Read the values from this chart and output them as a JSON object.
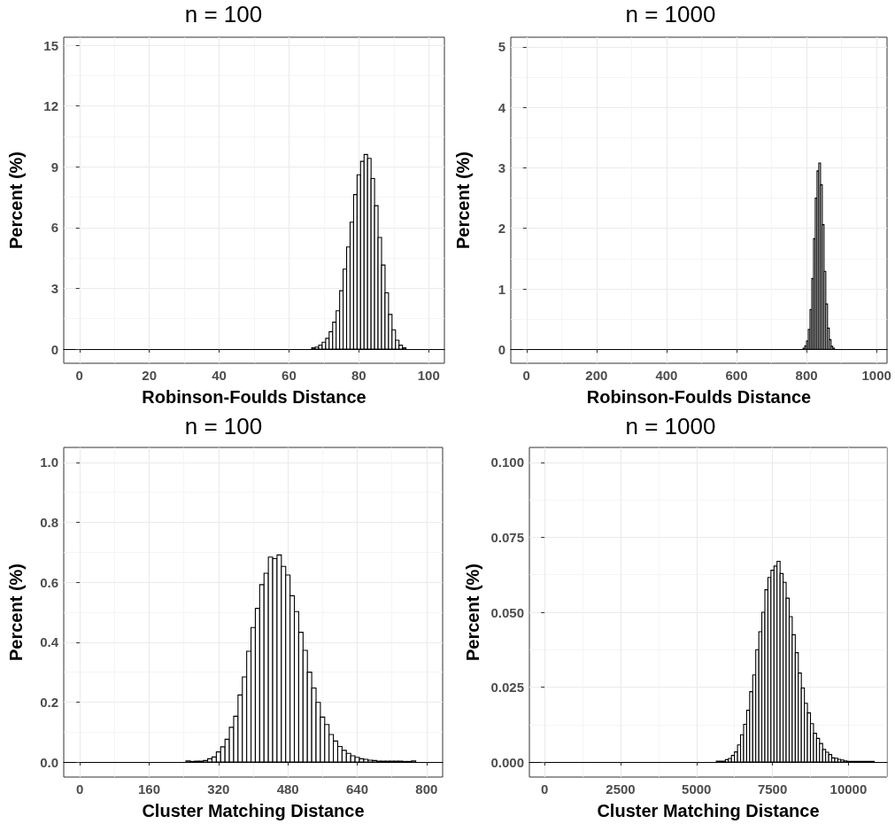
{
  "chart_data": [
    {
      "type": "histogram",
      "title": "n = 100",
      "xlabel": "Robinson-Foulds Distance",
      "ylabel": "Percent (%)",
      "color": "#ffffff",
      "grid": true,
      "bins": [
        66.5,
        67.5,
        68.5,
        69.5,
        70.5,
        71.5,
        72.5,
        73.5,
        74.5,
        75.5,
        76.5,
        77.5,
        78.5,
        79.5,
        80.5,
        81.5,
        82.5,
        83.5,
        84.5,
        85.5,
        86.5,
        87.5,
        88.5,
        89.5,
        90.5,
        91.5,
        92.5,
        93.5
      ],
      "values": [
        0.06,
        0.1,
        0.2,
        0.34,
        0.53,
        0.86,
        1.33,
        1.89,
        2.88,
        3.95,
        5.04,
        6.27,
        7.63,
        8.61,
        9.27,
        9.61,
        9.42,
        8.42,
        7.08,
        5.51,
        4.15,
        2.78,
        1.71,
        0.95,
        0.44,
        0.19,
        0.06
      ],
      "xlim": [
        -4.5,
        104.5
      ],
      "xticks": [
        0,
        20,
        40,
        60,
        80,
        100
      ],
      "ylim": [
        -0.7,
        15.4
      ],
      "yticks": [
        0,
        3,
        6,
        9,
        12,
        15
      ]
    },
    {
      "type": "histogram",
      "title": "n = 1000",
      "xlabel": "Robinson-Foulds Distance",
      "ylabel": "Percent (%)",
      "color": "#ffffff",
      "grid": true,
      "bins": [
        790,
        795,
        800,
        805,
        810,
        815,
        820,
        825,
        830,
        835,
        840,
        845,
        850,
        855,
        860,
        865,
        870,
        875,
        880
      ],
      "values": [
        0.02,
        0.06,
        0.14,
        0.33,
        0.66,
        1.17,
        1.83,
        2.5,
        2.95,
        3.08,
        2.72,
        2.06,
        1.29,
        0.75,
        0.35,
        0.16,
        0.05,
        0.02
      ],
      "xlim": [
        -45,
        1030
      ],
      "xticks": [
        0,
        200,
        400,
        600,
        800,
        1000
      ],
      "ylim": [
        -0.23,
        5.16
      ],
      "yticks": [
        0,
        1,
        2,
        3,
        4,
        5
      ]
    },
    {
      "type": "histogram",
      "title": "n = 100",
      "xlabel": "Cluster Matching Distance",
      "ylabel": "Percent (%)",
      "color": "#ffffff",
      "grid": true,
      "bins": [
        245,
        255,
        265,
        275,
        285,
        295,
        305,
        315,
        325,
        335,
        345,
        355,
        365,
        375,
        385,
        395,
        405,
        415,
        425,
        435,
        445,
        455,
        465,
        475,
        485,
        495,
        505,
        515,
        525,
        535,
        545,
        555,
        565,
        575,
        585,
        595,
        605,
        615,
        625,
        635,
        645,
        655,
        665,
        675,
        685,
        695,
        705,
        715,
        725,
        735,
        745,
        755,
        765,
        775
      ],
      "values": [
        0.004,
        0.002,
        0.003,
        0.003,
        0.005,
        0.011,
        0.017,
        0.034,
        0.051,
        0.076,
        0.116,
        0.153,
        0.224,
        0.284,
        0.37,
        0.449,
        0.513,
        0.592,
        0.63,
        0.684,
        0.679,
        0.691,
        0.653,
        0.624,
        0.555,
        0.502,
        0.433,
        0.373,
        0.3,
        0.247,
        0.199,
        0.15,
        0.125,
        0.092,
        0.07,
        0.052,
        0.039,
        0.029,
        0.021,
        0.016,
        0.011,
        0.009,
        0.006,
        0.005,
        0.003,
        0.003,
        0.003,
        0.003,
        0.003,
        0.003,
        0.002,
        0.002,
        0.004
      ],
      "xlim": [
        -37,
        837
      ],
      "xticks": [
        0,
        160,
        320,
        480,
        640,
        800
      ],
      "ylim": [
        -0.05,
        1.05
      ],
      "yticks": [
        {
          "value": 0,
          "label": "0.0"
        },
        {
          "value": 0.2,
          "label": "0.2"
        },
        {
          "value": 0.4,
          "label": "0.4"
        },
        {
          "value": 0.6,
          "label": "0.6"
        },
        {
          "value": 0.8,
          "label": "0.8"
        },
        {
          "value": 1,
          "label": "1.0"
        }
      ]
    },
    {
      "type": "histogram",
      "title": "n = 1000",
      "xlabel": "Cluster Matching Distance",
      "ylabel": "Percent (%)",
      "color": "#ffffff",
      "grid": true,
      "bins": [
        5650,
        5950,
        6050,
        6150,
        6250,
        6350,
        6450,
        6550,
        6650,
        6750,
        6850,
        6950,
        7050,
        7150,
        7250,
        7350,
        7450,
        7550,
        7650,
        7750,
        7850,
        7950,
        8050,
        8150,
        8250,
        8350,
        8450,
        8550,
        8650,
        8750,
        8850,
        8950,
        9050,
        9150,
        9250,
        9350,
        9450,
        9550,
        9650,
        9750,
        9850,
        9950,
        10850
      ],
      "values": [
        0.0003,
        0.0008,
        0.0012,
        0.0022,
        0.0034,
        0.0057,
        0.0091,
        0.0126,
        0.0173,
        0.0235,
        0.0291,
        0.0375,
        0.0435,
        0.05,
        0.0575,
        0.0616,
        0.064,
        0.0654,
        0.067,
        0.0629,
        0.06,
        0.0547,
        0.0485,
        0.0425,
        0.0365,
        0.0297,
        0.0247,
        0.0196,
        0.0164,
        0.0128,
        0.0096,
        0.0079,
        0.0062,
        0.0042,
        0.0033,
        0.0025,
        0.0014,
        0.0013,
        0.0009,
        0.0007,
        0.0004,
        0.0002
      ],
      "xlim": [
        -500,
        11270
      ],
      "xticks": [
        0,
        2500,
        5000,
        7500,
        10000
      ],
      "ylim": [
        -0.005,
        0.105
      ],
      "yticks": [
        {
          "value": 0,
          "label": "0.000"
        },
        {
          "value": 0.025,
          "label": "0.025"
        },
        {
          "value": 0.05,
          "label": "0.050"
        },
        {
          "value": 0.075,
          "label": "0.075"
        },
        {
          "value": 0.1,
          "label": "0.100"
        }
      ]
    }
  ]
}
